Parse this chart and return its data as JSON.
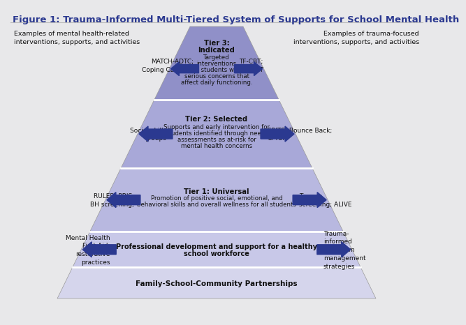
{
  "title": "Figure 1: Trauma-Informed Multi-Tiered System of Supports for School Mental Health",
  "background_color": "#e8e8ea",
  "tier_colors": [
    "#d5d5ec",
    "#c8c8e8",
    "#b8b8e0",
    "#a8a8d8",
    "#9090c8"
  ],
  "left_header": "Examples of mental health-related\ninterventions, supports, and activities",
  "right_header": "Examples of trauma-focused\ninterventions, supports, and activities",
  "tier3_label1": "Tier 3:",
  "tier3_label2": "Indicated",
  "tier3_text": "Targeted\ninterventions\nfor students with\nserious concerns that\naffect daily functioning.",
  "tier3_left": "MATCH-ADTC;\nCoping Cat; DBT",
  "tier3_right": "TF-CBT;\nTARGET",
  "tier2_label": "Tier 2: Selected",
  "tier2_text": "Supports and early intervention for\nstudents identified through needs\nassessments as at-risk for\nmental health concerns",
  "tier2_left": "Social skills\ngroups",
  "tier2_right": "CBITS; Bounce Back;\nCFTSI",
  "tier1_label": "Tier 1: Universal",
  "tier1_text": "Promotion of positive social, emotional, and\nbehavioral skills and overall wellness for all students",
  "tier1_left": "RULER; PBIS;\nBH screening;",
  "tier1_right": "Trauma\nscreening; ALIVE",
  "profdev_label": "Professional development and support for a healthy\nschool workforce",
  "profdev_left": "Mental Health\nFirst Aid;\nrestorative\npractices",
  "profdev_right": "Trauma-\ninformed\nclassroom\nmanagement\nstrategies",
  "family_label": "Family-School-Community Partnerships",
  "arrow_color": "#2b3990",
  "title_color": "#2b3990",
  "text_color": "#111111"
}
